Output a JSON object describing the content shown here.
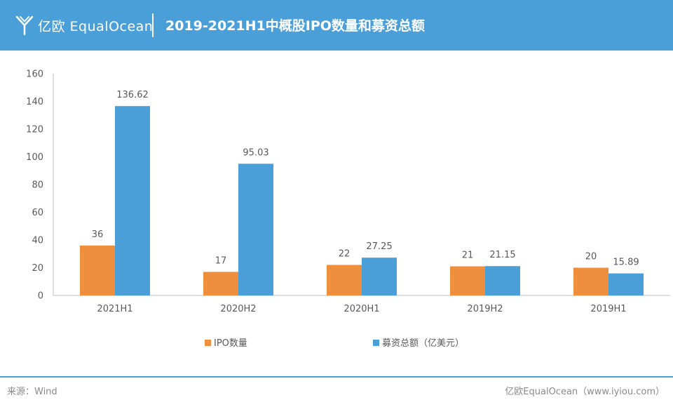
{
  "header": {
    "brand": "亿欧 EqualOcean",
    "title": "2019-2021H1中概股IPO数量和募资总额"
  },
  "colors": {
    "header_bg": "#4a9fd8",
    "ipo": "#ed8f3d",
    "amount": "#4a9fd8"
  },
  "chart_data": {
    "type": "bar",
    "categories": [
      "2021H1",
      "2020H2",
      "2020H1",
      "2019H2",
      "2019H1"
    ],
    "series": [
      {
        "name": "IPO数量",
        "values": [
          36,
          17,
          22,
          21,
          20
        ],
        "labels": [
          "36",
          "17",
          "22",
          "21",
          "20"
        ]
      },
      {
        "name": "募资总额（亿美元）",
        "values": [
          136.62,
          95.03,
          27.25,
          21.15,
          15.89
        ],
        "labels": [
          "136.62",
          "95.03",
          "27.25",
          "21.15",
          "15.89"
        ]
      }
    ],
    "yticks": [
      "0",
      "20",
      "40",
      "60",
      "80",
      "100",
      "120",
      "140",
      "160"
    ],
    "ylim": [
      0,
      160
    ],
    "grid": false,
    "legend": "bottom"
  },
  "footer": {
    "source": "来源：Wind",
    "credit": "亿欧EqualOcean（www.iyiou.com）"
  }
}
